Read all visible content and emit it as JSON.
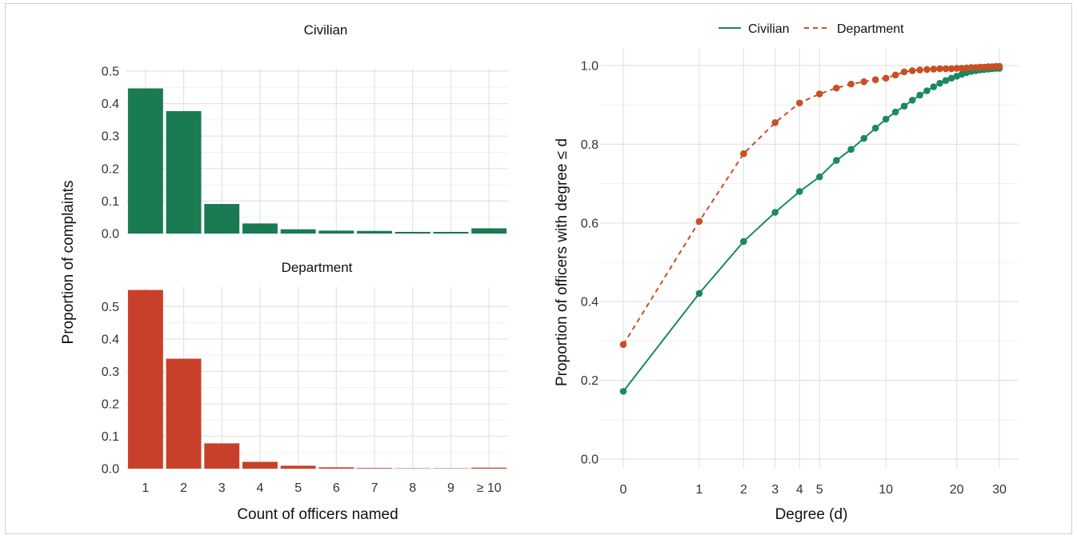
{
  "chart_data": [
    {
      "type": "bar",
      "panel": "Civilian",
      "title": "Civilian",
      "categories": [
        "1",
        "2",
        "3",
        "4",
        "5",
        "6",
        "7",
        "8",
        "9",
        "≥ 10"
      ],
      "values": [
        0.447,
        0.377,
        0.091,
        0.031,
        0.013,
        0.009,
        0.008,
        0.005,
        0.005,
        0.016
      ],
      "ylim": [
        0,
        0.5
      ],
      "yticks": [
        0.0,
        0.1,
        0.2,
        0.3,
        0.4,
        0.5
      ],
      "ytick_labels": [
        "0.0",
        "0.1",
        "0.2",
        "0.3",
        "0.4",
        "0.5"
      ],
      "color": "#1a7a52",
      "grid": true
    },
    {
      "type": "bar",
      "panel": "Department",
      "title": "Department",
      "categories": [
        "1",
        "2",
        "3",
        "4",
        "5",
        "6",
        "7",
        "8",
        "9",
        "≥ 10"
      ],
      "values": [
        0.551,
        0.339,
        0.078,
        0.021,
        0.009,
        0.004,
        0.002,
        0.001,
        0.001,
        0.003
      ],
      "ylim": [
        0,
        0.55
      ],
      "yticks": [
        0.0,
        0.1,
        0.2,
        0.3,
        0.4,
        0.5
      ],
      "ytick_labels": [
        "0.0",
        "0.1",
        "0.2",
        "0.3",
        "0.4",
        "0.5"
      ],
      "color": "#c8402a",
      "xlabel": "Count of officers named",
      "grid": true
    },
    {
      "type": "line",
      "xlabel": "Degree (d)",
      "ylabel": "Proportion of officers with degree ≤ d",
      "x_scale": "log(1 + d)",
      "xticks": [
        0,
        1,
        2,
        3,
        4,
        5,
        10,
        20,
        30
      ],
      "xtick_labels": [
        "0",
        "1",
        "2",
        "3",
        "4",
        "5",
        "10",
        "20",
        "30"
      ],
      "ylim": [
        0,
        1.0
      ],
      "yticks": [
        0.0,
        0.2,
        0.4,
        0.6,
        0.8,
        1.0
      ],
      "ytick_labels": [
        "0.0",
        "0.2",
        "0.4",
        "0.6",
        "0.8",
        "1.0"
      ],
      "legend_placement": "top",
      "grid": true,
      "series": [
        {
          "name": "Civilian",
          "color": "#1a8a5e",
          "dash": "solid",
          "x": [
            0,
            1,
            2,
            3,
            4,
            5,
            6,
            7,
            8,
            9,
            10,
            11,
            12,
            13,
            14,
            15,
            16,
            17,
            18,
            19,
            20,
            21,
            22,
            23,
            24,
            25,
            26,
            27,
            28,
            29,
            30
          ],
          "y": [
            0.172,
            0.421,
            0.553,
            0.627,
            0.68,
            0.717,
            0.759,
            0.787,
            0.815,
            0.841,
            0.864,
            0.882,
            0.897,
            0.912,
            0.925,
            0.936,
            0.946,
            0.955,
            0.962,
            0.968,
            0.973,
            0.978,
            0.982,
            0.985,
            0.987,
            0.989,
            0.99,
            0.991,
            0.992,
            0.993,
            0.993
          ]
        },
        {
          "name": "Department",
          "color": "#c94f24",
          "dash": "dashed",
          "x": [
            0,
            1,
            2,
            3,
            4,
            5,
            6,
            7,
            8,
            9,
            10,
            11,
            12,
            13,
            14,
            15,
            16,
            17,
            18,
            19,
            20,
            21,
            22,
            23,
            24,
            25,
            26,
            27,
            28,
            29,
            30
          ],
          "y": [
            0.291,
            0.604,
            0.776,
            0.855,
            0.905,
            0.928,
            0.943,
            0.953,
            0.959,
            0.964,
            0.968,
            0.976,
            0.984,
            0.987,
            0.989,
            0.99,
            0.991,
            0.992,
            0.992,
            0.992,
            0.993,
            0.993,
            0.994,
            0.995,
            0.995,
            0.996,
            0.996,
            0.997,
            0.997,
            0.998,
            0.998
          ]
        }
      ]
    }
  ],
  "shared": {
    "left_ylabel": "Proportion of complaints"
  }
}
